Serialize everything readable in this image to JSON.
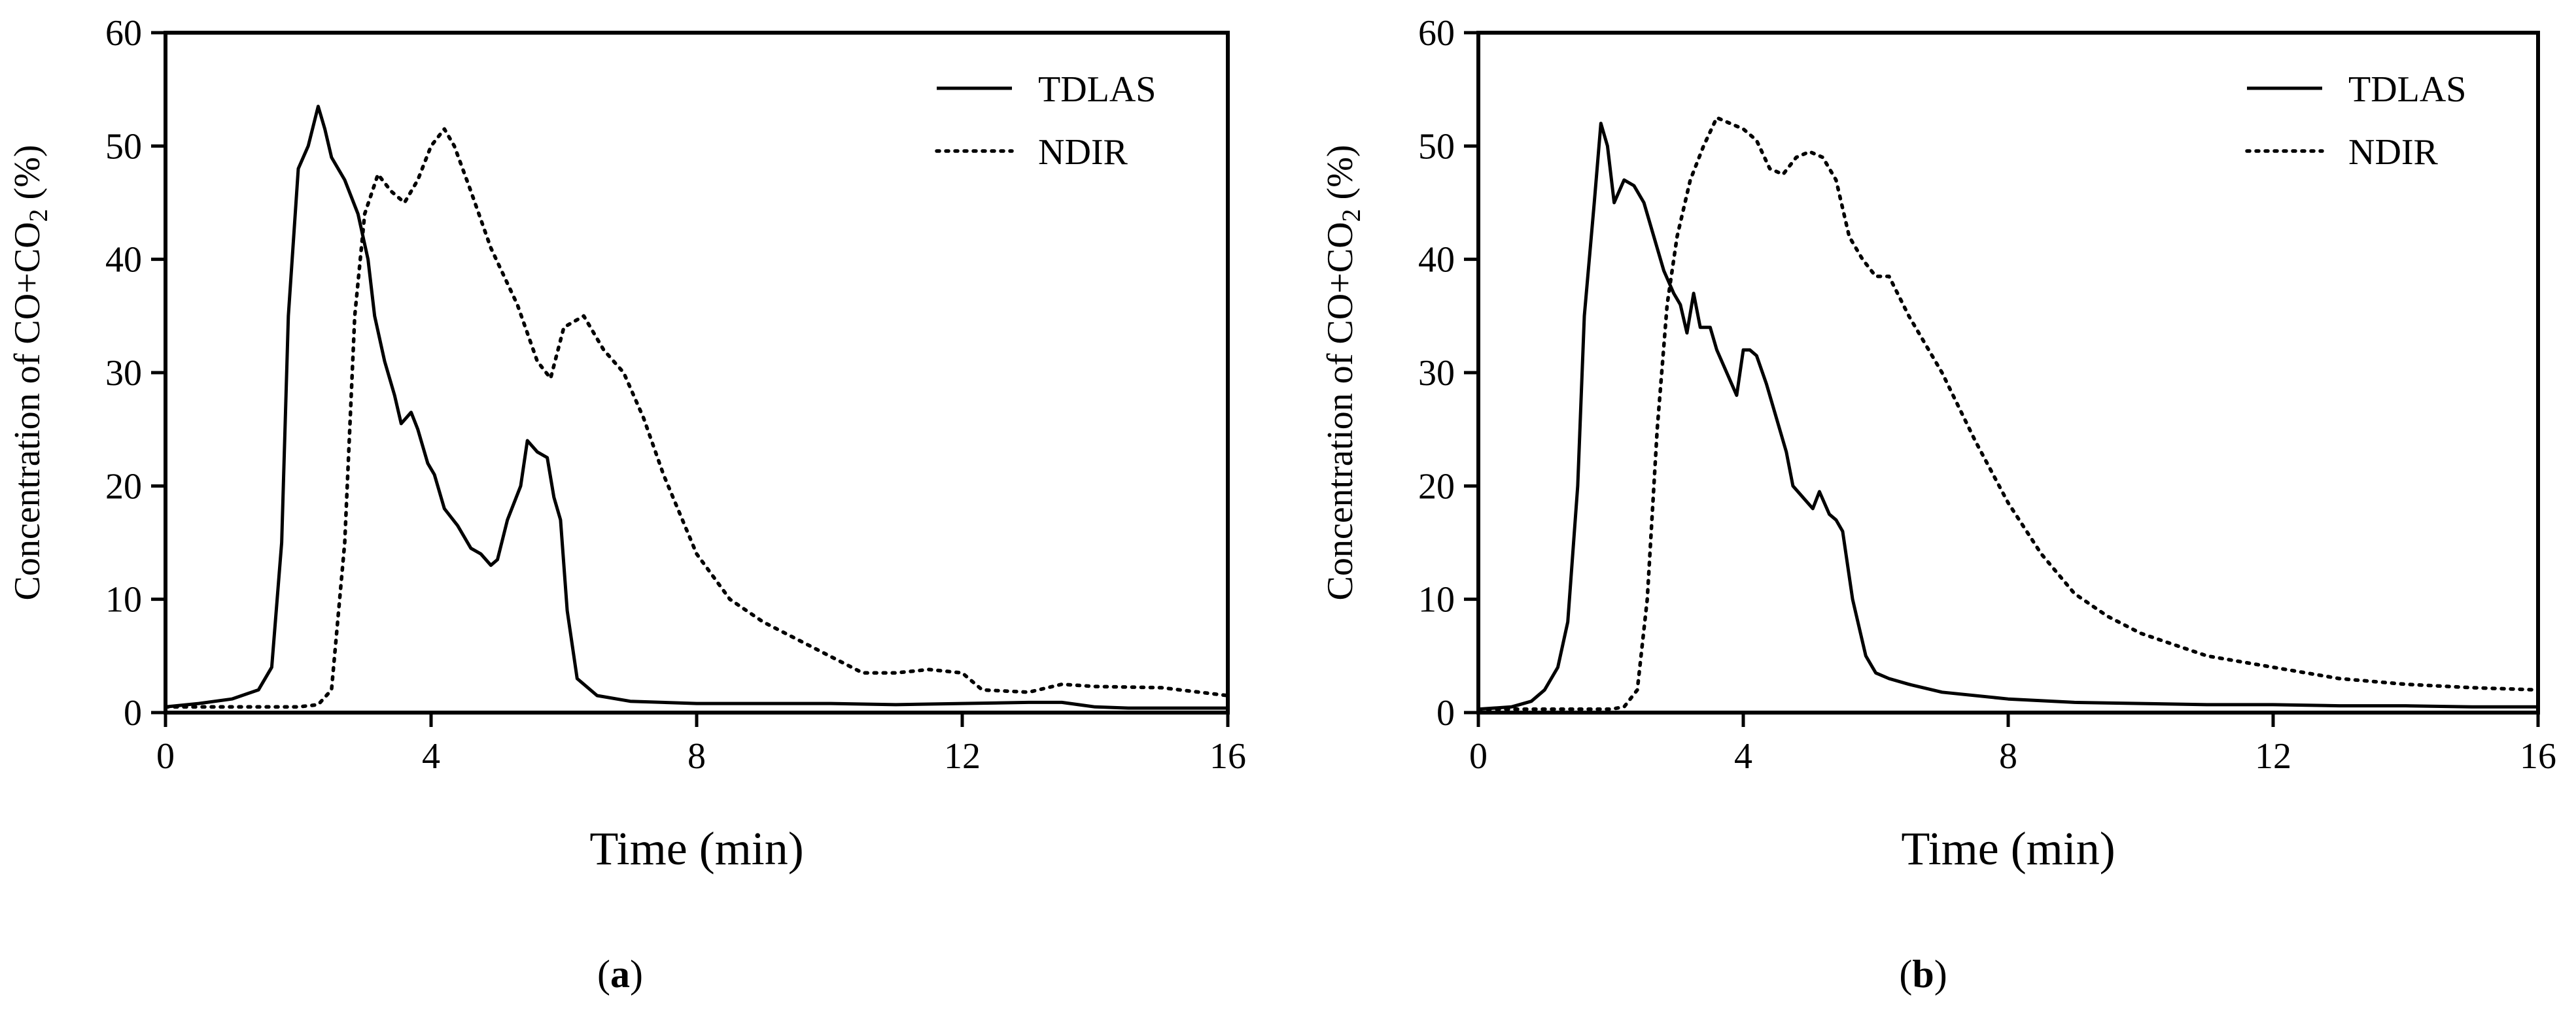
{
  "chart_data": [
    {
      "type": "line",
      "panel_label": "a",
      "xlabel": "Time (min)",
      "ylabel_prefix": "Concentration of CO+CO",
      "ylabel_subscript": "2",
      "ylabel_suffix": " (%)",
      "xlim": [
        0,
        16
      ],
      "ylim": [
        0,
        60
      ],
      "xticks": [
        0,
        4,
        8,
        12,
        16
      ],
      "yticks": [
        0,
        10,
        20,
        30,
        40,
        50,
        60
      ],
      "grid": false,
      "legend_position": "top-right",
      "series": [
        {
          "name": "TDLAS",
          "style": "solid",
          "x": [
            0,
            0.5,
            1.0,
            1.4,
            1.6,
            1.75,
            1.85,
            2.0,
            2.15,
            2.3,
            2.4,
            2.5,
            2.7,
            2.9,
            3.05,
            3.15,
            3.3,
            3.45,
            3.55,
            3.7,
            3.8,
            3.95,
            4.05,
            4.2,
            4.4,
            4.6,
            4.75,
            4.9,
            5.0,
            5.15,
            5.35,
            5.45,
            5.6,
            5.75,
            5.85,
            5.95,
            6.05,
            6.2,
            6.5,
            7,
            8,
            9,
            10,
            11,
            12,
            13,
            13.5,
            14,
            14.5,
            15,
            16
          ],
          "y": [
            0.5,
            0.8,
            1.2,
            2.0,
            4.0,
            15.0,
            35.0,
            48.0,
            50.0,
            53.5,
            51.5,
            49.0,
            47.0,
            44.0,
            40.0,
            35.0,
            31.0,
            28.0,
            25.5,
            26.5,
            25.0,
            22.0,
            21.0,
            18.0,
            16.5,
            14.5,
            14.0,
            13.0,
            13.5,
            17.0,
            20.0,
            24.0,
            23.0,
            22.5,
            19.0,
            17.0,
            9.0,
            3.0,
            1.5,
            1.0,
            0.8,
            0.8,
            0.8,
            0.7,
            0.8,
            0.9,
            0.9,
            0.5,
            0.4,
            0.4,
            0.4
          ]
        },
        {
          "name": "NDIR",
          "style": "dotted",
          "x": [
            0,
            1.5,
            2.0,
            2.3,
            2.5,
            2.7,
            2.85,
            3.0,
            3.2,
            3.4,
            3.6,
            3.8,
            4.0,
            4.2,
            4.35,
            4.6,
            4.9,
            5.3,
            5.6,
            5.8,
            6.0,
            6.3,
            6.6,
            6.9,
            7.2,
            7.5,
            8.0,
            8.5,
            9.0,
            9.5,
            10.0,
            10.5,
            11.0,
            11.5,
            12.0,
            12.3,
            13.0,
            13.5,
            14.0,
            15.0,
            16.0
          ],
          "y": [
            0.5,
            0.5,
            0.5,
            0.7,
            2.0,
            15.0,
            35.0,
            44.0,
            47.5,
            46.0,
            45.0,
            47.0,
            50.0,
            51.5,
            50.0,
            46.0,
            41.0,
            36.0,
            31.0,
            29.5,
            34.0,
            35.0,
            32.0,
            30.0,
            26.0,
            21.0,
            14.0,
            10.0,
            8.0,
            6.5,
            5.0,
            3.5,
            3.5,
            3.8,
            3.5,
            2.0,
            1.8,
            2.5,
            2.3,
            2.2,
            1.5
          ]
        }
      ]
    },
    {
      "type": "line",
      "panel_label": "b",
      "xlabel": "Time (min)",
      "ylabel_prefix": "Concentration of CO+CO",
      "ylabel_subscript": "2",
      "ylabel_suffix": " (%)",
      "xlim": [
        0,
        16
      ],
      "ylim": [
        0,
        60
      ],
      "xticks": [
        0,
        4,
        8,
        12,
        16
      ],
      "yticks": [
        0,
        10,
        20,
        30,
        40,
        50,
        60
      ],
      "grid": false,
      "legend_position": "top-right",
      "series": [
        {
          "name": "TDLAS",
          "style": "solid",
          "x": [
            0,
            0.5,
            0.8,
            1.0,
            1.2,
            1.35,
            1.5,
            1.6,
            1.75,
            1.85,
            1.95,
            2.05,
            2.2,
            2.35,
            2.5,
            2.65,
            2.8,
            2.95,
            3.05,
            3.15,
            3.25,
            3.35,
            3.5,
            3.6,
            3.75,
            3.9,
            4.0,
            4.1,
            4.2,
            4.35,
            4.5,
            4.65,
            4.75,
            4.9,
            5.05,
            5.15,
            5.3,
            5.4,
            5.5,
            5.65,
            5.85,
            6.0,
            6.2,
            6.5,
            7.0,
            8.0,
            9.0,
            10.0,
            11.0,
            12.0,
            13.0,
            14.0,
            15.0,
            16.0
          ],
          "y": [
            0.3,
            0.5,
            1.0,
            2.0,
            4.0,
            8.0,
            20.0,
            35.0,
            45.0,
            52.0,
            50.0,
            45.0,
            47.0,
            46.5,
            45.0,
            42.0,
            39.0,
            37.0,
            36.0,
            33.5,
            37.0,
            34.0,
            34.0,
            32.0,
            30.0,
            28.0,
            32.0,
            32.0,
            31.5,
            29.0,
            26.0,
            23.0,
            20.0,
            19.0,
            18.0,
            19.5,
            17.5,
            17.0,
            16.0,
            10.0,
            5.0,
            3.5,
            3.0,
            2.5,
            1.8,
            1.2,
            0.9,
            0.8,
            0.7,
            0.7,
            0.6,
            0.6,
            0.5,
            0.5
          ]
        },
        {
          "name": "NDIR",
          "style": "dotted",
          "x": [
            0,
            1.5,
            2.0,
            2.2,
            2.4,
            2.55,
            2.7,
            2.85,
            3.0,
            3.2,
            3.4,
            3.6,
            3.8,
            4.0,
            4.2,
            4.4,
            4.6,
            4.8,
            5.0,
            5.2,
            5.4,
            5.6,
            5.8,
            6.0,
            6.2,
            6.5,
            7.0,
            7.5,
            8.0,
            8.5,
            9.0,
            9.5,
            10.0,
            10.5,
            11.0,
            12.0,
            13.0,
            14.0,
            15.0,
            16.0
          ],
          "y": [
            0.3,
            0.3,
            0.3,
            0.5,
            2.0,
            10.0,
            25.0,
            36.0,
            42.0,
            47.0,
            50.0,
            52.5,
            52.0,
            51.5,
            50.5,
            48.0,
            47.5,
            49.0,
            49.5,
            49.0,
            47.0,
            42.0,
            40.0,
            38.5,
            38.5,
            35.0,
            30.0,
            24.0,
            18.5,
            14.0,
            10.5,
            8.5,
            7.0,
            6.0,
            5.0,
            4.0,
            3.0,
            2.5,
            2.2,
            2.0
          ]
        }
      ]
    }
  ]
}
